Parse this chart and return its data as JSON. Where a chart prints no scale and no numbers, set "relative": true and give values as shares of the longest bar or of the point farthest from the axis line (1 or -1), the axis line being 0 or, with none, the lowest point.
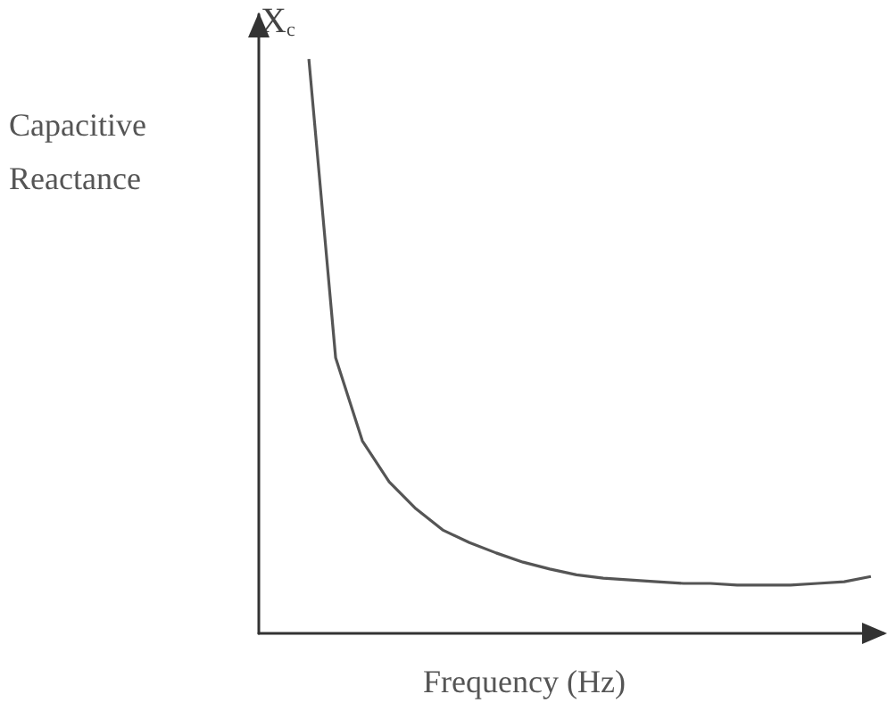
{
  "chart_data": {
    "type": "line",
    "relative": true,
    "marker": "none",
    "color": "#555555",
    "xlabel": "Frequency (Hz)",
    "ylabel": "Capacitive Reactance",
    "annotations": [
      "X$_{c}$"
    ],
    "categories": [
      null,
      null,
      null,
      null,
      null,
      null,
      null,
      null,
      null,
      null,
      null,
      null,
      null,
      null,
      null,
      null,
      null,
      null,
      null,
      null,
      null,
      null
    ],
    "values": [
      1,
      0.48,
      0.335,
      0.264,
      0.217,
      0.18,
      0.158,
      0.14,
      0.124,
      0.112,
      0.102,
      0.096,
      0.093,
      0.09,
      0.087,
      0.087,
      0.084,
      0.084,
      0.084,
      0.087,
      0.09,
      0.099
    ]
  }
}
